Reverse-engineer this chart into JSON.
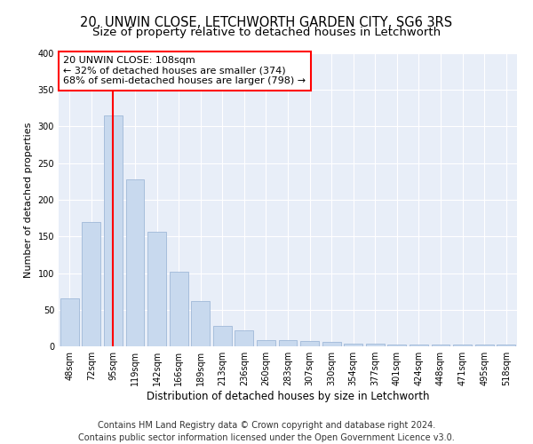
{
  "title1": "20, UNWIN CLOSE, LETCHWORTH GARDEN CITY, SG6 3RS",
  "title2": "Size of property relative to detached houses in Letchworth",
  "xlabel": "Distribution of detached houses by size in Letchworth",
  "ylabel": "Number of detached properties",
  "categories": [
    "48sqm",
    "72sqm",
    "95sqm",
    "119sqm",
    "142sqm",
    "166sqm",
    "189sqm",
    "213sqm",
    "236sqm",
    "260sqm",
    "283sqm",
    "307sqm",
    "330sqm",
    "354sqm",
    "377sqm",
    "401sqm",
    "424sqm",
    "448sqm",
    "471sqm",
    "495sqm",
    "518sqm"
  ],
  "values": [
    65,
    170,
    315,
    228,
    156,
    102,
    62,
    28,
    22,
    9,
    9,
    7,
    6,
    4,
    4,
    3,
    3,
    2,
    2,
    2,
    2
  ],
  "bar_color": "#c8d9ee",
  "bar_edge_color": "#a0b8d8",
  "vline_x": 2,
  "vline_color": "red",
  "annotation_text": "20 UNWIN CLOSE: 108sqm\n← 32% of detached houses are smaller (374)\n68% of semi-detached houses are larger (798) →",
  "annotation_box_color": "white",
  "annotation_box_edge": "red",
  "ylim": [
    0,
    400
  ],
  "yticks": [
    0,
    50,
    100,
    150,
    200,
    250,
    300,
    350,
    400
  ],
  "footer1": "Contains HM Land Registry data © Crown copyright and database right 2024.",
  "footer2": "Contains public sector information licensed under the Open Government Licence v3.0.",
  "background_color": "#e8eef8",
  "grid_color": "#ffffff",
  "title1_fontsize": 10.5,
  "title2_fontsize": 9.5,
  "xlabel_fontsize": 8.5,
  "ylabel_fontsize": 8,
  "annotation_fontsize": 8,
  "footer_fontsize": 7,
  "tick_fontsize": 7
}
